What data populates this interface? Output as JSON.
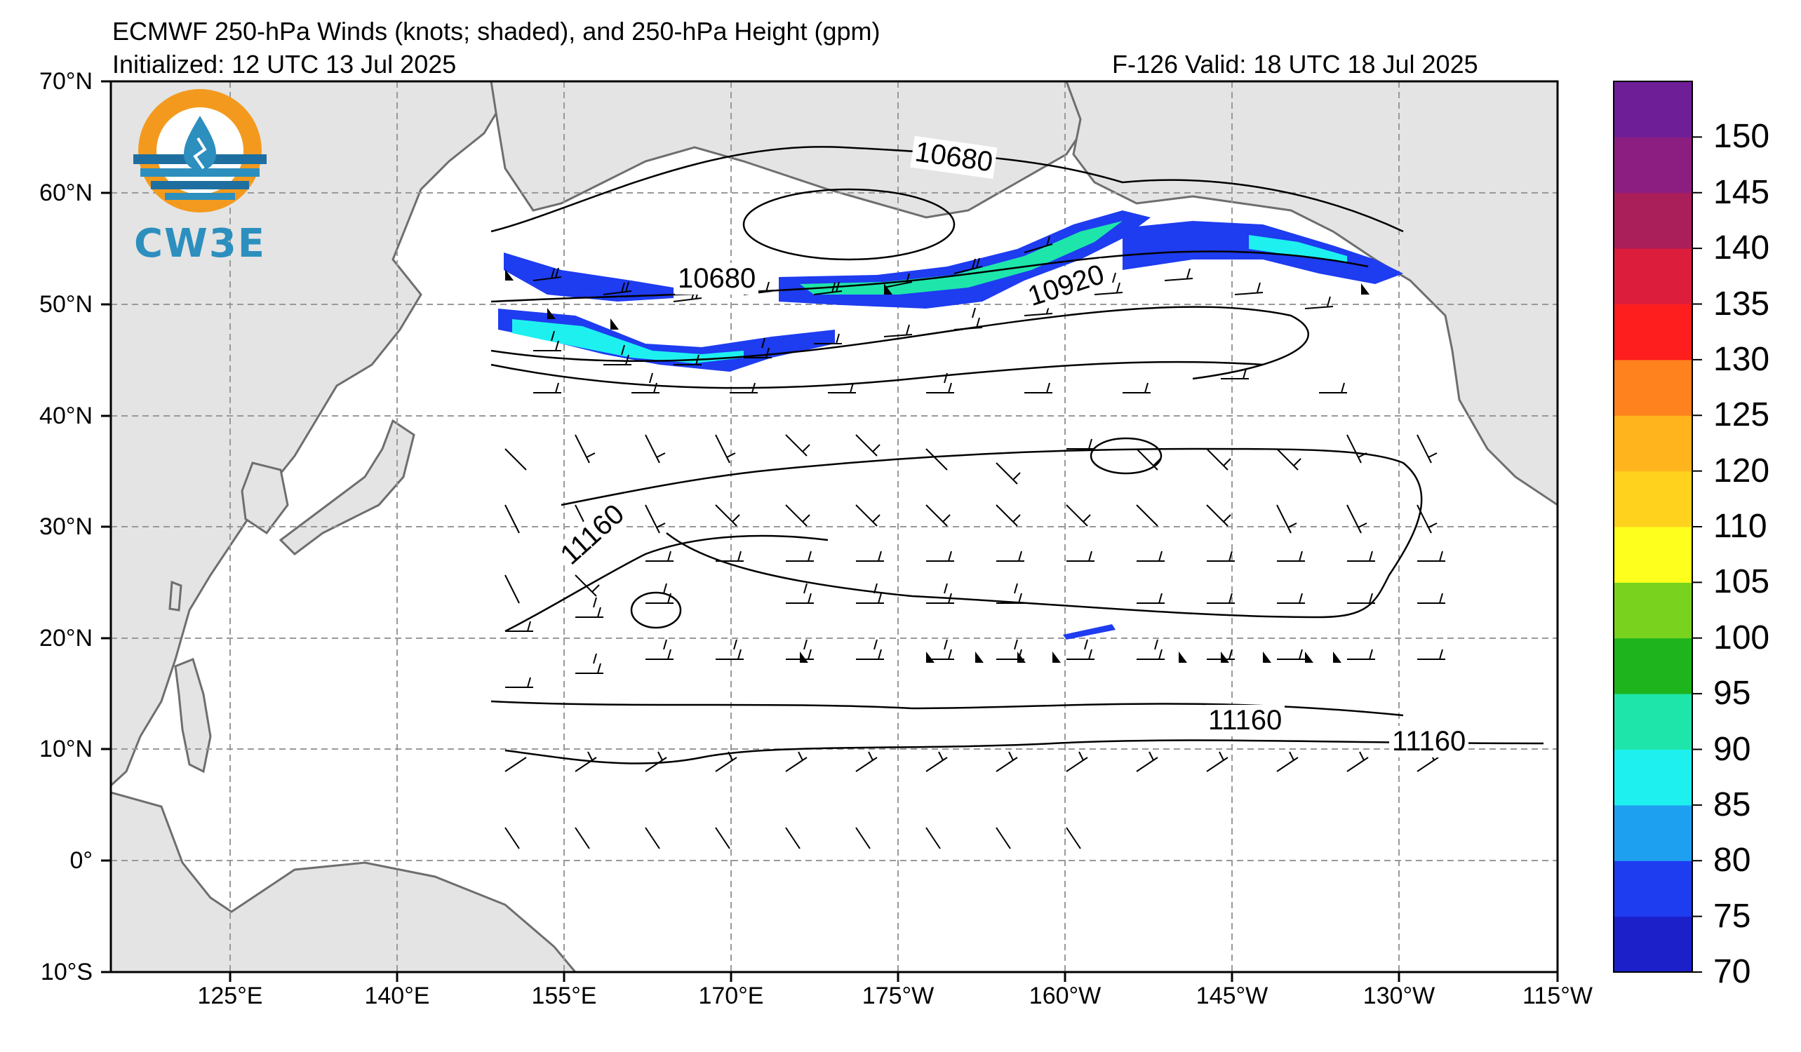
{
  "title": {
    "line1": "ECMWF 250-hPa Winds (knots; shaded), and 250-hPa Height (gpm)",
    "line2_left": "Initialized: 12 UTC 13 Jul 2025",
    "line2_right": "F-126  Valid: 18 UTC 18 Jul 2025"
  },
  "logo": {
    "text": "CW3E"
  },
  "lat_labels": [
    "70°N",
    "60°N",
    "50°N",
    "40°N",
    "30°N",
    "20°N",
    "10°N",
    "0°",
    "10°S"
  ],
  "lon_labels": [
    "125°E",
    "140°E",
    "155°E",
    "170°E",
    "175°W",
    "160°W",
    "145°W",
    "130°W",
    "115°W"
  ],
  "contour_labels": [
    "10680",
    "10680",
    "10920",
    "11160",
    "11160",
    "11160"
  ],
  "colorbar": {
    "ticks": [
      "70",
      "75",
      "80",
      "85",
      "90",
      "95",
      "100",
      "105",
      "110",
      "120",
      "125",
      "130",
      "135",
      "140",
      "145",
      "150"
    ],
    "colors": [
      "#1c20c8",
      "#1e3cf0",
      "#1ea0f0",
      "#1ef0f0",
      "#1ee6aa",
      "#1eb41e",
      "#78d21e",
      "#ffff1e",
      "#ffd21e",
      "#ffb41e",
      "#ff821e",
      "#ff1e1e",
      "#dc1e3c",
      "#aa1e5a",
      "#8c1e82",
      "#6e1e96"
    ]
  },
  "colors": {
    "land": "#e4e4e4",
    "coast": "#6e6e6e",
    "grid": "#999999",
    "jet_core": "#1ef0f0",
    "jet_edge": "#1e3cf0",
    "jet_mid": "#1ee6aa"
  }
}
